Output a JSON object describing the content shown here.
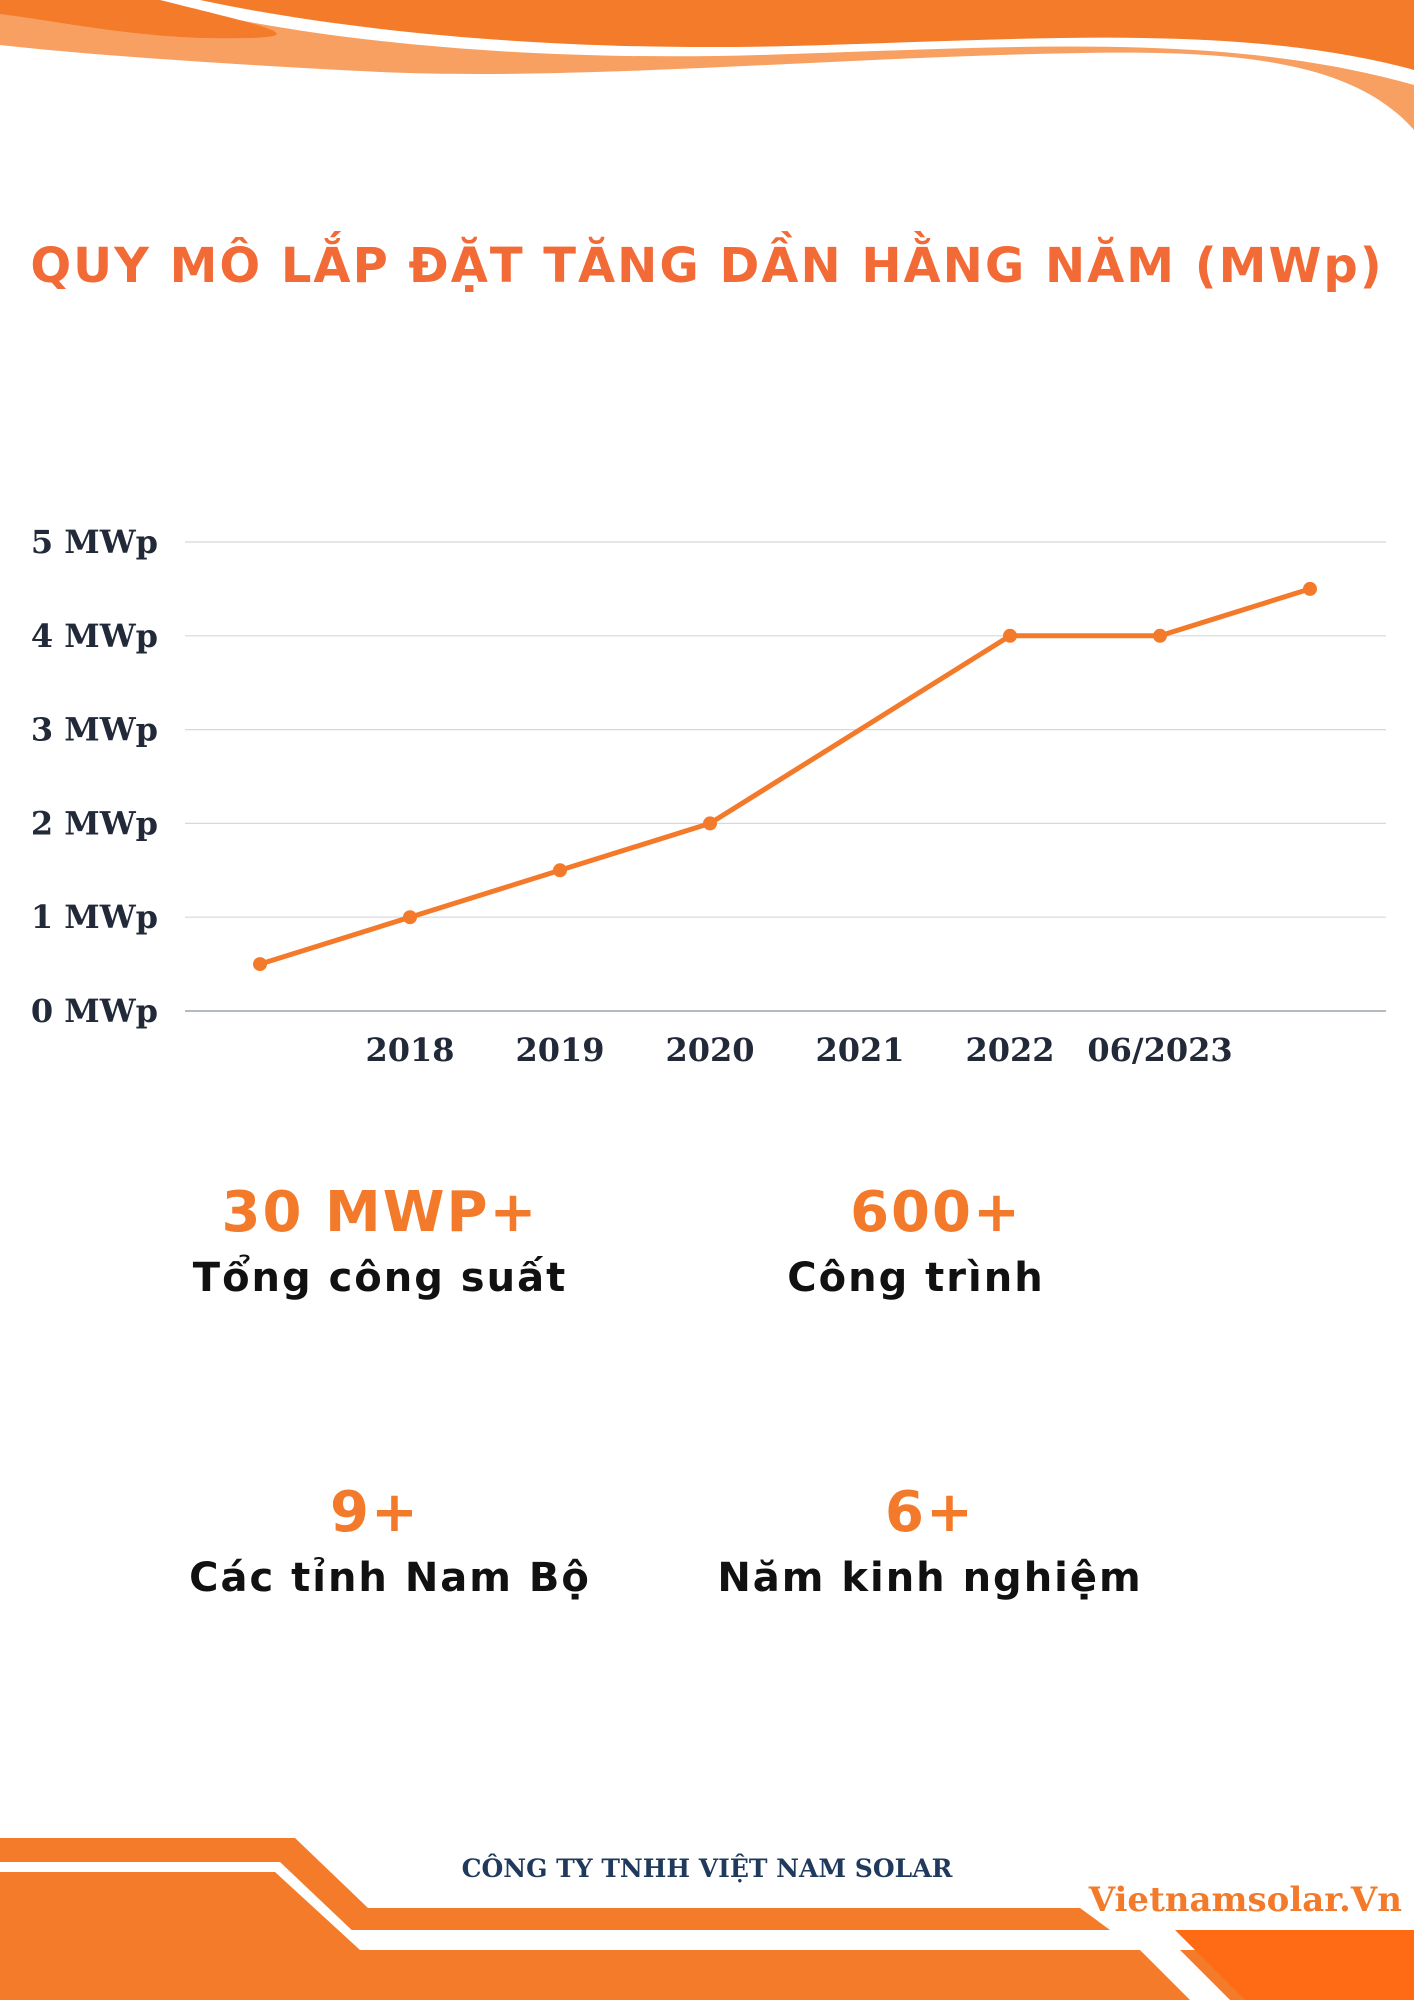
{
  "page": {
    "title": "QUY MÔ LẮP ĐẶT TĂNG DẦN HẰNG NĂM (MWp)",
    "accent_color": "#F37A2A",
    "dark_color": "#222A3A"
  },
  "stats": [
    {
      "value": "30 MWP+",
      "label": "Tổng công suất"
    },
    {
      "value": "600+",
      "label": "Công trình"
    },
    {
      "value": "9+",
      "label": "Các tỉnh Nam Bộ"
    },
    {
      "value": "6+",
      "label": "Năm kinh nghiệm"
    }
  ],
  "footer": {
    "company": "CÔNG TY TNHH VIỆT NAM SOLAR",
    "website": "Vietnamsolar.Vn"
  },
  "chart_data": {
    "type": "line",
    "title": "QUY MÔ LẮP ĐẶT TĂNG DẦN HẰNG NĂM (MWp)",
    "categories": [
      "",
      "2018",
      "2019",
      "2020",
      "2021",
      "2022",
      "06/2023",
      ""
    ],
    "series": [
      {
        "values": [
          0.5,
          1.0,
          1.5,
          2.0,
          3.0,
          4.0,
          4.0,
          4.5
        ],
        "color": "#F37A2A"
      }
    ],
    "markers": [
      true,
      true,
      true,
      true,
      false,
      true,
      true,
      true
    ],
    "y_ticks": [
      "0 MWp",
      "1 MWp",
      "2 MWp",
      "3 MWp",
      "4 MWp",
      "5 MWp"
    ],
    "ylim": [
      0,
      5
    ],
    "grid": true,
    "legend": "none"
  }
}
